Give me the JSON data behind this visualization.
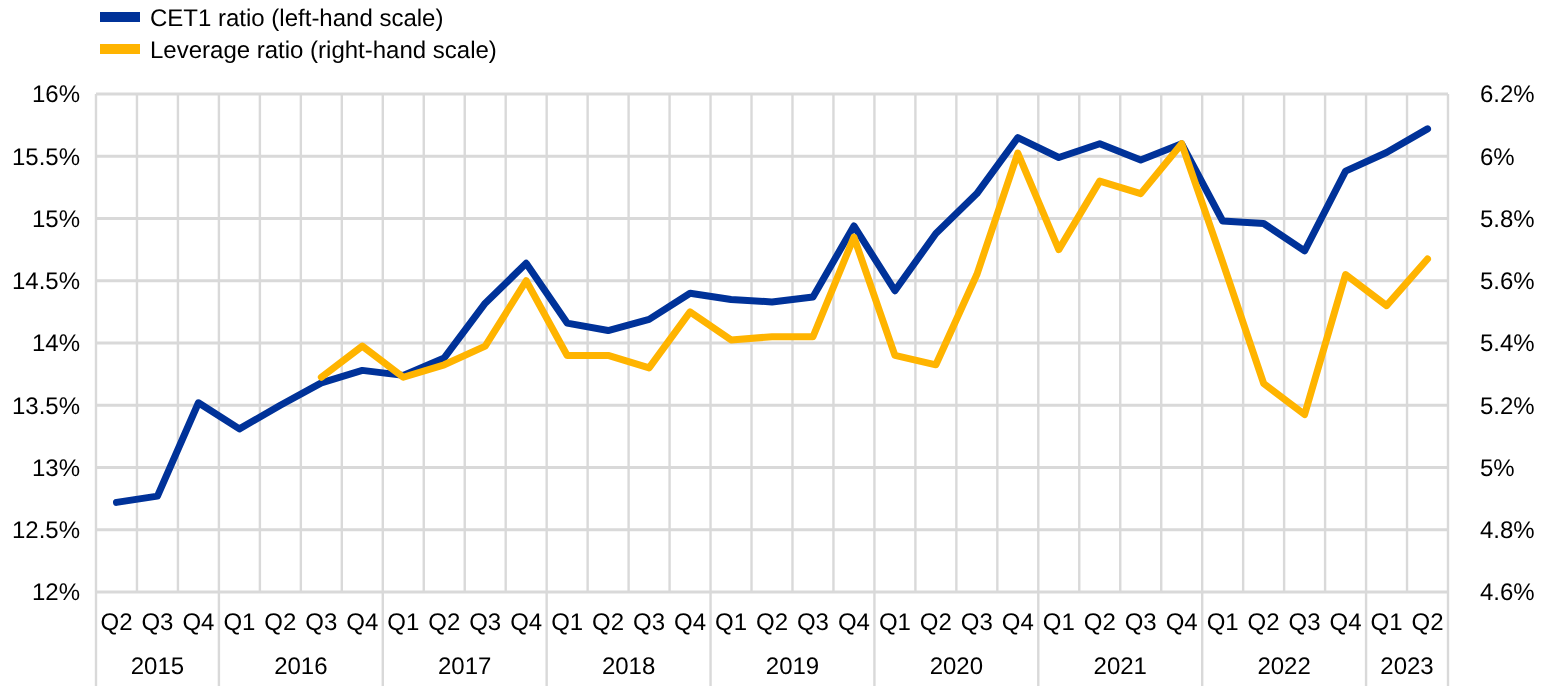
{
  "chart_data": {
    "type": "line",
    "categories": [
      "Q2",
      "Q3",
      "Q4",
      "Q1",
      "Q2",
      "Q3",
      "Q4",
      "Q1",
      "Q2",
      "Q3",
      "Q4",
      "Q1",
      "Q2",
      "Q3",
      "Q4",
      "Q1",
      "Q2",
      "Q3",
      "Q4",
      "Q1",
      "Q2",
      "Q3",
      "Q4",
      "Q1",
      "Q2",
      "Q3",
      "Q4",
      "Q1",
      "Q2",
      "Q3",
      "Q4",
      "Q1",
      "Q2"
    ],
    "annotations": [
      "2015",
      "2016",
      "2017",
      "2018",
      "2019",
      "2020",
      "2021",
      "2022",
      "2023"
    ],
    "series": [
      {
        "name": "CET1 ratio (left-hand scale)",
        "color": "#003299",
        "values": [
          12.72,
          12.77,
          13.52,
          13.31,
          13.5,
          13.68,
          13.78,
          13.74,
          13.88,
          14.32,
          14.64,
          14.16,
          14.1,
          14.19,
          14.4,
          14.35,
          14.33,
          14.37,
          14.94,
          14.42,
          14.88,
          15.2,
          15.65,
          15.49,
          15.6,
          15.47,
          15.6,
          14.98,
          14.96,
          14.74,
          15.38,
          15.53,
          15.72
        ]
      },
      {
        "name": "Leverage ratio (right-hand scale)",
        "color": "#ffb400",
        "axis": "y2",
        "values": [
          null,
          null,
          null,
          null,
          null,
          5.29,
          5.39,
          5.29,
          5.33,
          5.39,
          5.6,
          5.36,
          5.36,
          5.32,
          5.5,
          5.41,
          5.42,
          5.42,
          5.74,
          5.36,
          5.33,
          5.62,
          6.01,
          5.7,
          5.92,
          5.88,
          6.04,
          5.66,
          5.27,
          5.17,
          5.62,
          5.52,
          5.67
        ]
      }
    ],
    "ylim": [
      12,
      16
    ],
    "yticks": [
      {
        "value": 12,
        "label": "12%"
      },
      {
        "value": 12.5,
        "label": "12.5%"
      },
      {
        "value": 13,
        "label": "13%"
      },
      {
        "value": 13.5,
        "label": "13.5%"
      },
      {
        "value": 14,
        "label": "14%"
      },
      {
        "value": 14.5,
        "label": "14.5%"
      },
      {
        "value": 15,
        "label": "15%"
      },
      {
        "value": 15.5,
        "label": "15.5%"
      },
      {
        "value": 16,
        "label": "16%"
      }
    ],
    "y2lim": [
      4.6,
      6.2
    ],
    "y2ticks": [
      {
        "value": 4.6,
        "label": "4.6%"
      },
      {
        "value": 4.8,
        "label": "4.8%"
      },
      {
        "value": 5,
        "label": "5%"
      },
      {
        "value": 5.2,
        "label": "5.2%"
      },
      {
        "value": 5.4,
        "label": "5.4%"
      },
      {
        "value": 5.6,
        "label": "5.6%"
      },
      {
        "value": 5.8,
        "label": "5.8%"
      },
      {
        "value": 6,
        "label": "6%"
      },
      {
        "value": 6.2,
        "label": "6.2%"
      }
    ],
    "grid": true,
    "legend": "top left",
    "line_style": "solid"
  }
}
